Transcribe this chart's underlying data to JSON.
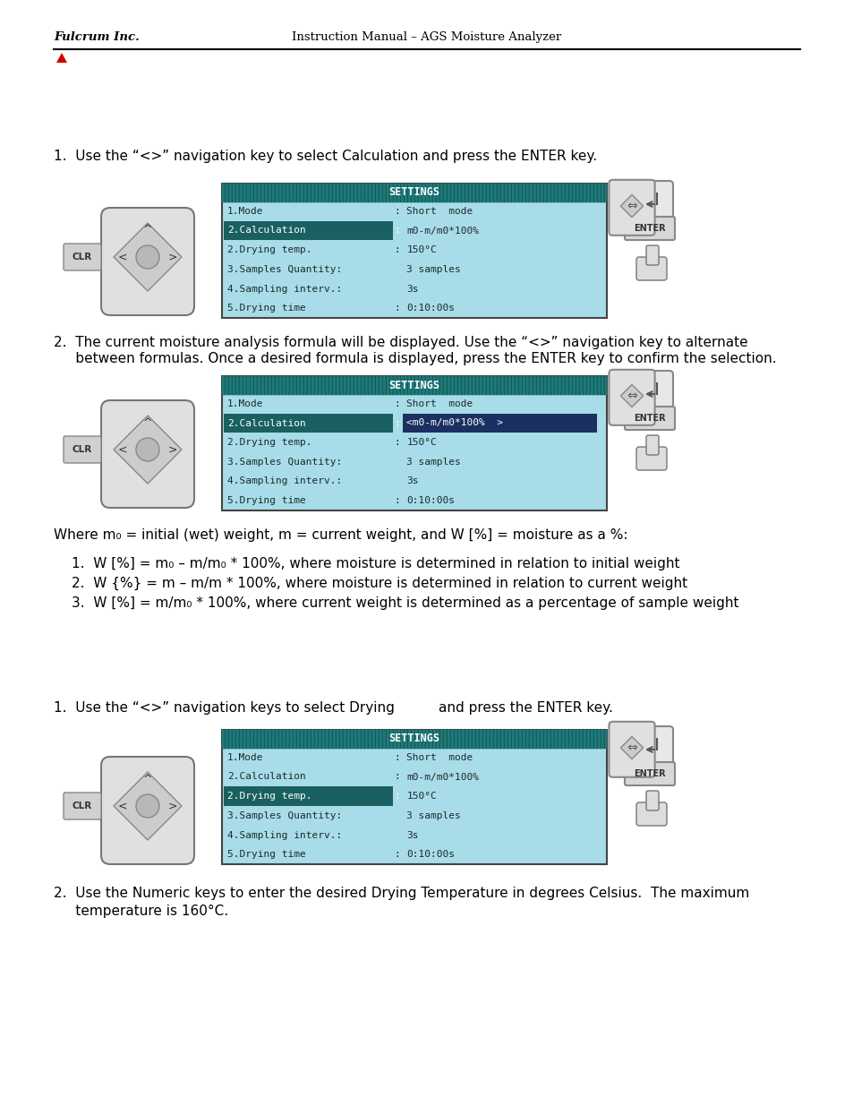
{
  "page_bg": "#ffffff",
  "header_left": "Fulcrum Inc.",
  "header_center": "Instruction Manual – AGS Moisture Analyzer",
  "triangle_color": "#cc0000",
  "section1_title": "1.  Use the “<>” navigation key to select Calculation and press the ENTER key.",
  "section2_title_line1": "2.  The current moisture analysis formula will be displayed. Use the “<>” navigation key to alternate",
  "section2_title_line2": "     between formulas. Once a desired formula is displayed, press the ENTER key to confirm the selection.",
  "screen1_title": "SETTINGS",
  "screen1_lines_left": [
    "1.Mode",
    "2.Calculation",
    "2.Drying temp.",
    "3.Samples Quantity:",
    "4.Sampling interv.:",
    "5.Drying time"
  ],
  "screen1_lines_right": [
    "Short  mode",
    "m0-m/m0*100%",
    "150°C",
    "3 samples",
    "3s",
    "0:10:00s"
  ],
  "screen1_has_colon": [
    true,
    true,
    true,
    false,
    false,
    true
  ],
  "screen1_highlight_line": 1,
  "screen1_value_highlight": false,
  "screen2_title": "SETTINGS",
  "screen2_lines_left": [
    "1.Mode",
    "2.Calculation",
    "2.Drying temp.",
    "3.Samples Quantity:",
    "4.Sampling interv.:",
    "5.Drying time"
  ],
  "screen2_lines_right": [
    "Short  mode",
    "<m0-m/m0*100%  >",
    "150°C",
    "3 samples",
    "3s",
    "0:10:00s"
  ],
  "screen2_has_colon": [
    true,
    true,
    true,
    false,
    false,
    true
  ],
  "screen2_highlight_line": 1,
  "screen2_value_highlight": true,
  "where_text": "Where m₀ = initial (wet) weight, m = current weight, and W [%] = moisture as a %:",
  "formula_line1": "1.  W [%] = m₀ – m/m₀ * 100%, where moisture is determined in relation to initial weight",
  "formula_line2": "2.  W {%} = m – m/m * 100%, where moisture is determined in relation to current weight",
  "formula_line3": "3.  W [%] = m/m₀ * 100%, where current weight is determined as a percentage of sample weight",
  "section3_title_p1": "1.  Use the “<>” navigation keys to select Drying",
  "section3_title_p2": "and press the ENTER key.",
  "section4_title_line1": "2.  Use the Numeric keys to enter the desired Drying Temperature in degrees Celsius.  The maximum",
  "section4_title_line2": "     temperature is 160°C.",
  "screen3_title": "SETTINGS",
  "screen3_lines_left": [
    "1.Mode",
    "2.Calculation",
    "2.Drying temp.",
    "3.Samples Quantity:",
    "4.Sampling interv.:",
    "5.Drying time"
  ],
  "screen3_lines_right": [
    "Short  mode",
    "m0-m/m0*100%",
    "150°C",
    "3 samples",
    "3s",
    "0:10:00s"
  ],
  "screen3_has_colon": [
    true,
    true,
    true,
    false,
    false,
    true
  ],
  "screen3_highlight_line": 2,
  "screen3_value_highlight": false,
  "teal_header_color": "#1e7a7a",
  "screen_bg_color": "#a8dce8",
  "highlight_row_color": "#1a6060",
  "value_highlight_color": "#1a3060",
  "text_color": "#1a2a2a",
  "mono_font": "monospace"
}
